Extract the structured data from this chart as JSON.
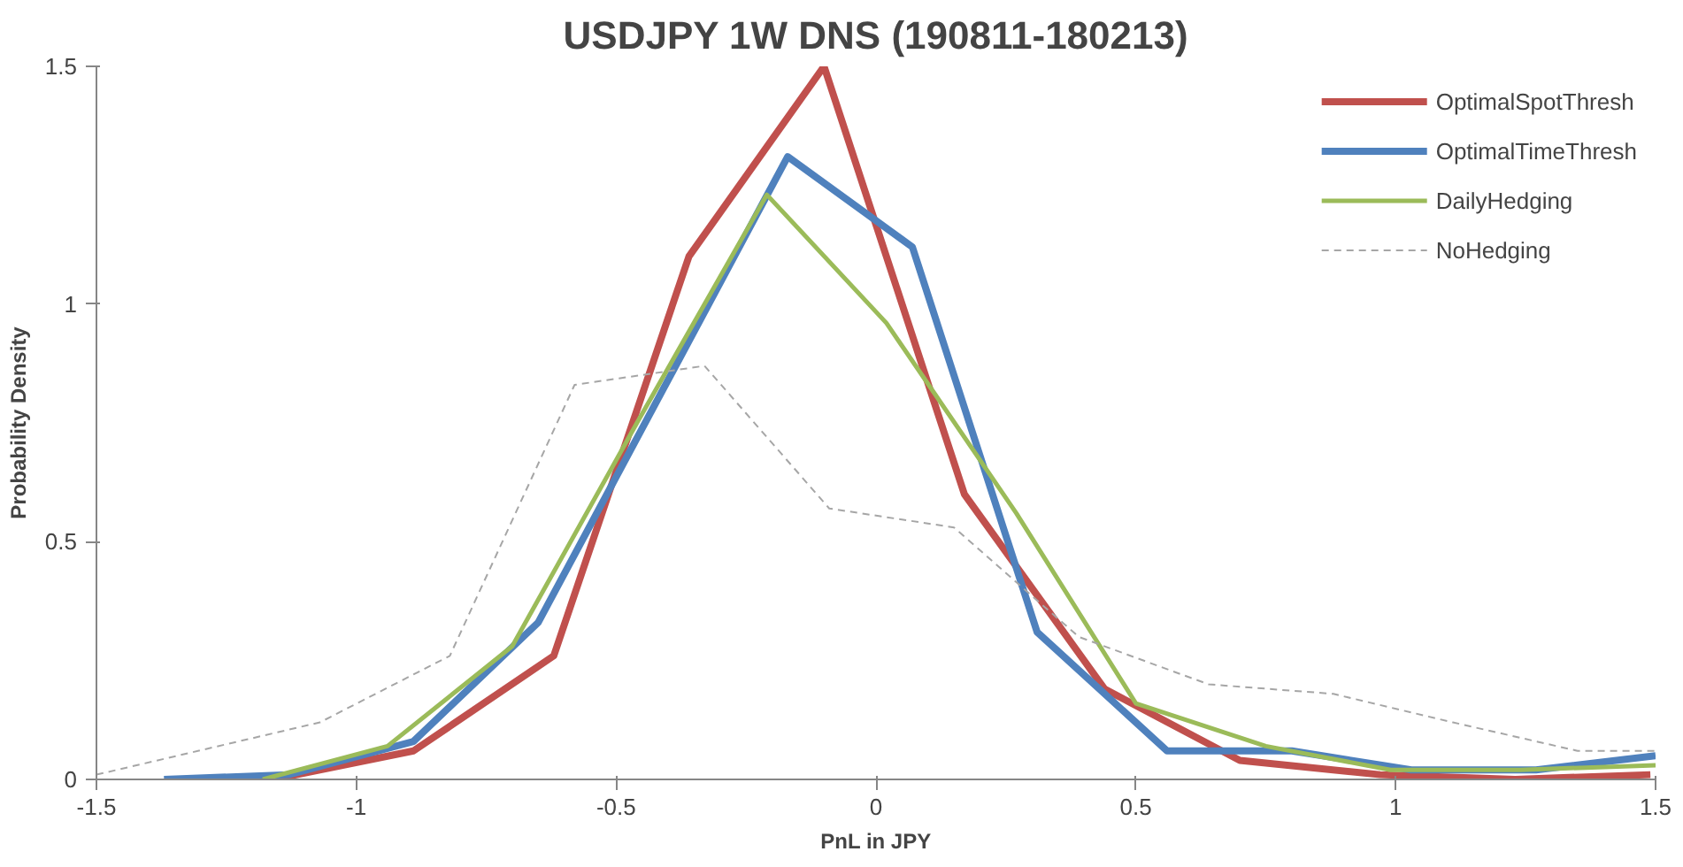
{
  "chart_data": {
    "type": "line",
    "title": "USDJPY 1W DNS (190811-180213)",
    "xlabel": "PnL in JPY",
    "ylabel": "Probability Density",
    "xlim": [
      -1.5,
      1.5
    ],
    "xticks": [
      -1.5,
      -1,
      -0.5,
      0,
      0.5,
      1,
      1.5
    ],
    "ylim": [
      0,
      1.5
    ],
    "yticks": [
      0,
      0.5,
      1,
      1.5
    ],
    "grid": false,
    "legend": "top right",
    "marker": "none",
    "series": [
      {
        "name": "OptimalSpotThresh",
        "color": "#c0504d",
        "line_style": "solid",
        "x": [
          -1.16,
          -0.89,
          -0.62,
          -0.36,
          -0.1,
          0.17,
          0.44,
          0.7,
          0.97,
          1.23,
          1.49
        ],
        "values": [
          0,
          0.06,
          0.26,
          1.1,
          1.5,
          0.6,
          0.19,
          0.04,
          0.01,
          0,
          0.01
        ]
      },
      {
        "name": "OptimalTimeThresh",
        "color": "#4f81bd",
        "line_style": "solid",
        "x": [
          -1.37,
          -1.13,
          -0.89,
          -0.65,
          -0.41,
          -0.17,
          0.07,
          0.31,
          0.56,
          0.8,
          1.03,
          1.27,
          1.5
        ],
        "values": [
          0,
          0.01,
          0.08,
          0.33,
          0.82,
          1.31,
          1.12,
          0.31,
          0.06,
          0.06,
          0.02,
          0.02,
          0.05
        ]
      },
      {
        "name": "DailyHedging",
        "color": "#9bbb59",
        "line_style": "solid",
        "x": [
          -1.18,
          -0.94,
          -0.7,
          -0.46,
          -0.21,
          0.02,
          0.27,
          0.5,
          0.75,
          0.99,
          1.24,
          1.5
        ],
        "values": [
          0,
          0.07,
          0.28,
          0.75,
          1.23,
          0.96,
          0.56,
          0.16,
          0.07,
          0.02,
          0.02,
          0.03
        ]
      },
      {
        "name": "NoHedging",
        "color": "#a6a6a6",
        "line_style": "dashed",
        "x": [
          -1.5,
          -1.07,
          -0.82,
          -0.58,
          -0.33,
          -0.09,
          0.15,
          0.39,
          0.64,
          0.88,
          1.11,
          1.35,
          1.5
        ],
        "values": [
          0.01,
          0.12,
          0.26,
          0.83,
          0.87,
          0.57,
          0.53,
          0.3,
          0.2,
          0.18,
          0.12,
          0.06,
          0.06
        ]
      }
    ]
  }
}
